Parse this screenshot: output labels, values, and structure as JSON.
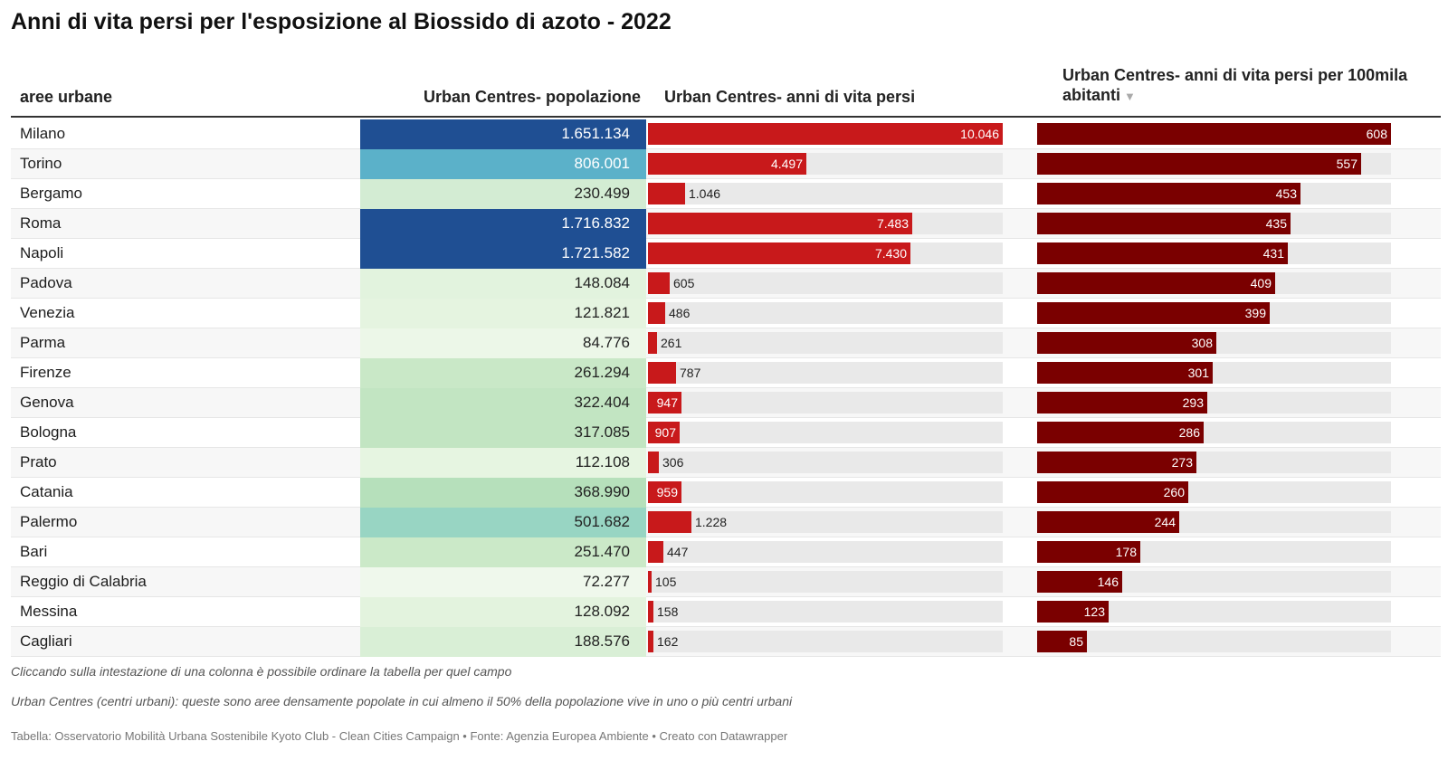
{
  "title": "Anni di vita persi per l'esposizione al Biossido di azoto - 2022",
  "headers": {
    "area": "aree urbane",
    "popolazione": "Urban Centres- popolazione",
    "anni": "Urban Centres- anni di vita persi",
    "per100k": "Urban Centres- anni di vita persi per 100mila abitanti"
  },
  "colors": {
    "anni_bar": "#c8191b",
    "per100k_bar": "#7a0000",
    "track": "#e9e9e9"
  },
  "chart_data": {
    "type": "table",
    "sorted_by": "per100k",
    "sort_direction": "descending",
    "rows": [
      {
        "area": "Milano",
        "popolazione": "1.651.134",
        "pop_value": 1651134,
        "anni": "10.046",
        "anni_value": 10046,
        "per100k": "608",
        "per100k_value": 608,
        "pop_color": "#1f4f93",
        "pop_text": "#ffffff"
      },
      {
        "area": "Torino",
        "popolazione": "806.001",
        "pop_value": 806001,
        "anni": "4.497",
        "anni_value": 4497,
        "per100k": "557",
        "per100k_value": 557,
        "pop_color": "#5bb1c9",
        "pop_text": "#ffffff"
      },
      {
        "area": "Bergamo",
        "popolazione": "230.499",
        "pop_value": 230499,
        "anni": "1.046",
        "anni_value": 1046,
        "per100k": "453",
        "per100k_value": 453,
        "pop_color": "#d3ecd3",
        "pop_text": "#222222"
      },
      {
        "area": "Roma",
        "popolazione": "1.716.832",
        "pop_value": 1716832,
        "anni": "7.483",
        "anni_value": 7483,
        "per100k": "435",
        "per100k_value": 435,
        "pop_color": "#1f4f93",
        "pop_text": "#ffffff"
      },
      {
        "area": "Napoli",
        "popolazione": "1.721.582",
        "pop_value": 1721582,
        "anni": "7.430",
        "anni_value": 7430,
        "per100k": "431",
        "per100k_value": 431,
        "pop_color": "#1f4f93",
        "pop_text": "#ffffff"
      },
      {
        "area": "Padova",
        "popolazione": "148.084",
        "pop_value": 148084,
        "anni": "605",
        "anni_value": 605,
        "per100k": "409",
        "per100k_value": 409,
        "pop_color": "#e2f3de",
        "pop_text": "#222222"
      },
      {
        "area": "Venezia",
        "popolazione": "121.821",
        "pop_value": 121821,
        "anni": "486",
        "anni_value": 486,
        "per100k": "399",
        "per100k_value": 399,
        "pop_color": "#e5f4e0",
        "pop_text": "#222222"
      },
      {
        "area": "Parma",
        "popolazione": "84.776",
        "pop_value": 84776,
        "anni": "261",
        "anni_value": 261,
        "per100k": "308",
        "per100k_value": 308,
        "pop_color": "#ecf7e8",
        "pop_text": "#222222"
      },
      {
        "area": "Firenze",
        "popolazione": "261.294",
        "pop_value": 261294,
        "anni": "787",
        "anni_value": 787,
        "per100k": "301",
        "per100k_value": 301,
        "pop_color": "#c9e8c7",
        "pop_text": "#222222"
      },
      {
        "area": "Genova",
        "popolazione": "322.404",
        "pop_value": 322404,
        "anni": "947",
        "anni_value": 947,
        "per100k": "293",
        "per100k_value": 293,
        "pop_color": "#c2e5c2",
        "pop_text": "#222222"
      },
      {
        "area": "Bologna",
        "popolazione": "317.085",
        "pop_value": 317085,
        "anni": "907",
        "anni_value": 907,
        "per100k": "286",
        "per100k_value": 286,
        "pop_color": "#c2e5c2",
        "pop_text": "#222222"
      },
      {
        "area": "Prato",
        "popolazione": "112.108",
        "pop_value": 112108,
        "anni": "306",
        "anni_value": 306,
        "per100k": "273",
        "per100k_value": 273,
        "pop_color": "#e6f5e1",
        "pop_text": "#222222"
      },
      {
        "area": "Catania",
        "popolazione": "368.990",
        "pop_value": 368990,
        "anni": "959",
        "anni_value": 959,
        "per100k": "260",
        "per100k_value": 260,
        "pop_color": "#b6e0bb",
        "pop_text": "#222222"
      },
      {
        "area": "Palermo",
        "popolazione": "501.682",
        "pop_value": 501682,
        "anni": "1.228",
        "anni_value": 1228,
        "per100k": "244",
        "per100k_value": 244,
        "pop_color": "#98d5c3",
        "pop_text": "#222222"
      },
      {
        "area": "Bari",
        "popolazione": "251.470",
        "pop_value": 251470,
        "anni": "447",
        "anni_value": 447,
        "per100k": "178",
        "per100k_value": 178,
        "pop_color": "#cbe9c8",
        "pop_text": "#222222"
      },
      {
        "area": "Reggio di Calabria",
        "popolazione": "72.277",
        "pop_value": 72277,
        "anni": "105",
        "anni_value": 105,
        "per100k": "146",
        "per100k_value": 146,
        "pop_color": "#eff8ec",
        "pop_text": "#222222"
      },
      {
        "area": "Messina",
        "popolazione": "128.092",
        "pop_value": 128092,
        "anni": "158",
        "anni_value": 158,
        "per100k": "123",
        "per100k_value": 123,
        "pop_color": "#e3f3de",
        "pop_text": "#222222"
      },
      {
        "area": "Cagliari",
        "popolazione": "188.576",
        "pop_value": 188576,
        "anni": "162",
        "anni_value": 162,
        "per100k": "85",
        "per100k_value": 85,
        "pop_color": "#d9efd6",
        "pop_text": "#222222"
      }
    ]
  },
  "notes": {
    "sort_hint": "Cliccando sulla intestazione di una colonna è possibile ordinare la tabella per quel campo",
    "definition": "Urban Centres (centri urbani): queste sono aree densamente popolate in cui almeno il 50% della popolazione vive in uno o più centri urbani"
  },
  "source": "Tabella: Osservatorio Mobilità Urbana Sostenibile Kyoto Club - Clean Cities Campaign • Fonte: Agenzia Europea Ambiente • Creato con Datawrapper"
}
